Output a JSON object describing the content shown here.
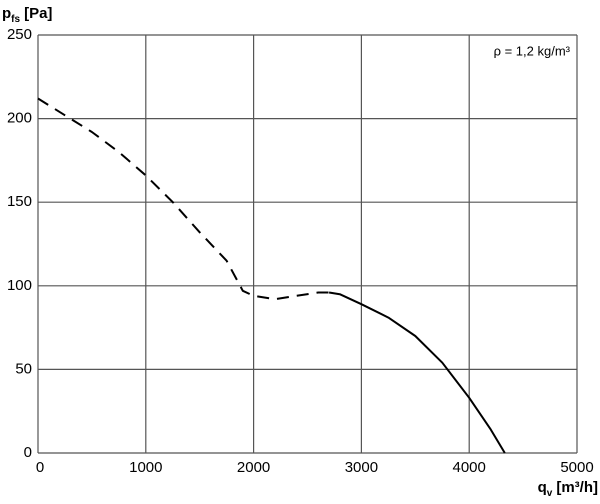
{
  "chart_data": {
    "type": "line",
    "ylabel_symbol": "p",
    "ylabel_subscript": "fs",
    "ylabel_unit": "[Pa]",
    "xlabel_symbol": "q",
    "xlabel_subscript": "v",
    "xlabel_unit": "[m³/h]",
    "annotation": "ρ = 1,2 kg/m³",
    "xlim": [
      0,
      5000
    ],
    "xticks": [
      0,
      1000,
      2000,
      3000,
      4000,
      5000
    ],
    "ylim": [
      0,
      250
    ],
    "yticks": [
      0,
      50,
      100,
      150,
      200,
      250
    ],
    "grid": true,
    "series": [
      {
        "color": "#000000",
        "style": "dashed",
        "x": [
          0,
          250,
          500,
          750,
          1000,
          1250,
          1500,
          1750,
          1900,
          2000,
          2200,
          2400,
          2600,
          2700
        ],
        "values": [
          212,
          202,
          192,
          180,
          166,
          150,
          132,
          115,
          97,
          94,
          92,
          94,
          96,
          96
        ]
      },
      {
        "color": "#000000",
        "style": "solid",
        "x": [
          2700,
          2800,
          3000,
          3250,
          3500,
          3750,
          4000,
          4200,
          4330
        ],
        "values": [
          96,
          95,
          89,
          81,
          70,
          54,
          33,
          14,
          0
        ]
      }
    ]
  }
}
